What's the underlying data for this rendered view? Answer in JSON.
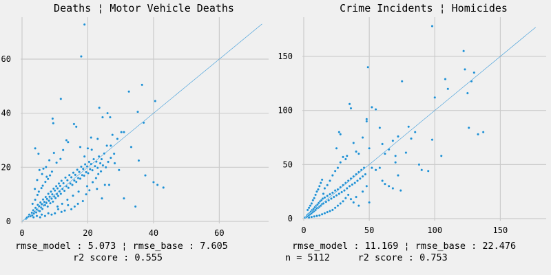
{
  "colors": {
    "background": "#f0f0f0",
    "grid": "#cbcbcb",
    "points": "#1f8fd2",
    "fit_line": "#3a9ad9"
  },
  "chart_data": [
    {
      "type": "scatter",
      "title": "Deaths ¦ Motor Vehicle Deaths",
      "xlim": [
        0,
        75
      ],
      "ylim": [
        0,
        75
      ],
      "xticks": [
        0,
        20,
        40,
        60
      ],
      "yticks": [
        0,
        20,
        40,
        60
      ],
      "grid": true,
      "fit_line": {
        "from": [
          0,
          0
        ],
        "to": [
          73,
          73
        ]
      },
      "captions": [
        "rmse_model : 5.073 ¦ rmse_base : 7.605",
        "r2 score : 0.555"
      ],
      "points": [
        [
          1.2,
          1.0
        ],
        [
          1.5,
          1.4
        ],
        [
          2.0,
          1.8
        ],
        [
          2.2,
          2.5
        ],
        [
          2.6,
          1.9
        ],
        [
          3.0,
          3.2
        ],
        [
          3.1,
          2.2
        ],
        [
          3.4,
          4.1
        ],
        [
          3.6,
          2.9
        ],
        [
          3.9,
          3.5
        ],
        [
          4.1,
          5.0
        ],
        [
          4.3,
          3.3
        ],
        [
          4.5,
          4.4
        ],
        [
          4.8,
          6.1
        ],
        [
          5.0,
          4.0
        ],
        [
          5.2,
          5.6
        ],
        [
          5.4,
          3.8
        ],
        [
          5.6,
          7.0
        ],
        [
          5.8,
          5.1
        ],
        [
          6.0,
          6.4
        ],
        [
          6.2,
          4.6
        ],
        [
          6.4,
          8.1
        ],
        [
          6.6,
          5.9
        ],
        [
          6.8,
          7.2
        ],
        [
          7.0,
          6.0
        ],
        [
          7.2,
          9.0
        ],
        [
          7.4,
          6.8
        ],
        [
          7.6,
          8.3
        ],
        [
          7.8,
          5.5
        ],
        [
          8.0,
          10.2
        ],
        [
          8.2,
          7.6
        ],
        [
          8.4,
          9.1
        ],
        [
          8.6,
          6.7
        ],
        [
          8.8,
          11.0
        ],
        [
          9.0,
          8.4
        ],
        [
          9.2,
          10.0
        ],
        [
          9.4,
          7.3
        ],
        [
          9.6,
          12.1
        ],
        [
          9.8,
          9.2
        ],
        [
          10.0,
          11.4
        ],
        [
          10.2,
          8.6
        ],
        [
          10.4,
          13.0
        ],
        [
          10.6,
          10.1
        ],
        [
          10.8,
          12.2
        ],
        [
          11.0,
          9.4
        ],
        [
          11.2,
          14.0
        ],
        [
          11.4,
          11.1
        ],
        [
          11.6,
          13.1
        ],
        [
          11.8,
          10.2
        ],
        [
          12.0,
          15.0
        ],
        [
          12.3,
          12.0
        ],
        [
          12.6,
          14.1
        ],
        [
          12.9,
          11.3
        ],
        [
          13.2,
          16.2
        ],
        [
          13.5,
          13.0
        ],
        [
          13.8,
          15.2
        ],
        [
          14.1,
          12.4
        ],
        [
          14.4,
          17.1
        ],
        [
          14.7,
          14.0
        ],
        [
          15.0,
          16.3
        ],
        [
          15.3,
          13.5
        ],
        [
          15.6,
          18.0
        ],
        [
          15.9,
          15.1
        ],
        [
          16.2,
          17.2
        ],
        [
          16.5,
          14.6
        ],
        [
          16.8,
          19.1
        ],
        [
          17.1,
          16.0
        ],
        [
          17.4,
          18.3
        ],
        [
          17.7,
          15.8
        ],
        [
          18.0,
          20.2
        ],
        [
          18.3,
          17.1
        ],
        [
          18.6,
          19.4
        ],
        [
          18.9,
          16.9
        ],
        [
          19.2,
          21.1
        ],
        [
          19.5,
          18.2
        ],
        [
          19.8,
          20.3
        ],
        [
          20.1,
          17.8
        ],
        [
          20.4,
          22.0
        ],
        [
          20.7,
          19.3
        ],
        [
          21.0,
          21.2
        ],
        [
          21.4,
          18.9
        ],
        [
          21.8,
          23.0
        ],
        [
          22.2,
          20.4
        ],
        [
          22.6,
          22.1
        ],
        [
          23.0,
          19.8
        ],
        [
          23.4,
          24.0
        ],
        [
          23.8,
          21.5
        ],
        [
          24.2,
          23.0
        ],
        [
          24.6,
          20.7
        ],
        [
          25.0,
          25.1
        ],
        [
          3.2,
          6.5
        ],
        [
          4.0,
          8.0
        ],
        [
          4.7,
          9.8
        ],
        [
          5.1,
          11.0
        ],
        [
          5.9,
          12.3
        ],
        [
          6.3,
          13.2
        ],
        [
          7.1,
          14.6
        ],
        [
          7.9,
          15.7
        ],
        [
          8.5,
          17.0
        ],
        [
          9.1,
          18.4
        ],
        [
          3.9,
          12.0
        ],
        [
          4.6,
          15.3
        ],
        [
          5.3,
          19.0
        ],
        [
          6.1,
          17.5
        ],
        [
          7.3,
          20.1
        ],
        [
          8.3,
          22.6
        ],
        [
          9.7,
          25.3
        ],
        [
          10.5,
          21.7
        ],
        [
          11.7,
          23.1
        ],
        [
          12.5,
          26.4
        ],
        [
          4.0,
          27.0
        ],
        [
          5.0,
          25.0
        ],
        [
          6.5,
          19.5
        ],
        [
          7.5,
          16.5
        ],
        [
          9.3,
          38.0
        ],
        [
          9.5,
          36.3
        ],
        [
          11.8,
          45.3
        ],
        [
          13.5,
          30.0
        ],
        [
          14.0,
          29.3
        ],
        [
          15.8,
          36.0
        ],
        [
          16.5,
          35.0
        ],
        [
          17.7,
          27.5
        ],
        [
          18.0,
          61.0
        ],
        [
          19.0,
          72.8
        ],
        [
          21.2,
          26.5
        ],
        [
          23.5,
          42.0
        ],
        [
          24.5,
          38.5
        ],
        [
          26.0,
          40.0
        ],
        [
          26.8,
          38.5
        ],
        [
          27.0,
          28.0
        ],
        [
          27.5,
          32.0
        ],
        [
          28.2,
          21.5
        ],
        [
          29.0,
          30.5
        ],
        [
          30.2,
          33.0
        ],
        [
          31.0,
          33.0
        ],
        [
          32.5,
          48.0
        ],
        [
          33.2,
          27.5
        ],
        [
          34.5,
          5.5
        ],
        [
          35.2,
          40.5
        ],
        [
          35.5,
          22.5
        ],
        [
          36.5,
          50.5
        ],
        [
          37.0,
          36.5
        ],
        [
          37.5,
          17.0
        ],
        [
          40.5,
          44.5
        ],
        [
          40.0,
          14.5
        ],
        [
          41.2,
          13.5
        ],
        [
          43.0,
          12.5
        ],
        [
          31.0,
          8.5
        ],
        [
          25.2,
          13.5
        ],
        [
          26.5,
          13.5
        ],
        [
          24.3,
          8.5
        ],
        [
          22.8,
          12.0
        ],
        [
          20.5,
          11.5
        ],
        [
          19.5,
          10.0
        ],
        [
          18.5,
          7.5
        ],
        [
          17.0,
          6.5
        ],
        [
          16.0,
          5.5
        ],
        [
          15.0,
          4.5
        ],
        [
          14.0,
          6.0
        ],
        [
          13.0,
          4.0
        ],
        [
          12.0,
          3.5
        ],
        [
          11.0,
          4.5
        ],
        [
          10.0,
          3.0
        ],
        [
          9.0,
          2.5
        ],
        [
          8.0,
          3.0
        ],
        [
          7.0,
          2.0
        ],
        [
          6.0,
          2.5
        ],
        [
          5.5,
          1.5
        ],
        [
          4.5,
          2.0
        ],
        [
          3.5,
          1.5
        ],
        [
          10.8,
          5.5
        ],
        [
          12.2,
          6.5
        ],
        [
          13.8,
          8.0
        ],
        [
          15.5,
          9.5
        ],
        [
          17.2,
          11.0
        ],
        [
          19.8,
          13.0
        ],
        [
          21.5,
          14.5
        ],
        [
          22.5,
          16.0
        ],
        [
          23.2,
          17.5
        ],
        [
          24.0,
          18.5
        ],
        [
          25.5,
          20.0
        ],
        [
          26.2,
          22.0
        ],
        [
          27.0,
          23.5
        ],
        [
          28.0,
          25.0
        ],
        [
          29.5,
          19.0
        ],
        [
          25.8,
          28.0
        ],
        [
          23.0,
          30.5
        ],
        [
          21.0,
          31.0
        ],
        [
          20.0,
          27.0
        ],
        [
          19.0,
          24.0
        ]
      ]
    },
    {
      "type": "scatter",
      "title": "Crime Incidents ¦ Homicides",
      "xlim": [
        0,
        185
      ],
      "ylim": [
        0,
        185
      ],
      "xticks": [
        0,
        50,
        100,
        150
      ],
      "yticks": [
        0,
        50,
        100,
        150
      ],
      "grid": true,
      "fit_line": {
        "from": [
          0,
          0
        ],
        "to": [
          177,
          177
        ]
      },
      "captions": [
        "rmse_model : 11.169 ¦ rmse_base : 22.476",
        "n = 5112     r2 score : 0.753"
      ],
      "points": [
        [
          1,
          1
        ],
        [
          2,
          1.5
        ],
        [
          2.5,
          3
        ],
        [
          3,
          2
        ],
        [
          3.5,
          4
        ],
        [
          4,
          3
        ],
        [
          4.5,
          5
        ],
        [
          5,
          4
        ],
        [
          5.5,
          6.5
        ],
        [
          6,
          5
        ],
        [
          6.5,
          8
        ],
        [
          7,
          6
        ],
        [
          7.5,
          9
        ],
        [
          8,
          7
        ],
        [
          8.5,
          10.5
        ],
        [
          9,
          8
        ],
        [
          9.5,
          12
        ],
        [
          10,
          9.5
        ],
        [
          10.5,
          13
        ],
        [
          11,
          10
        ],
        [
          11.5,
          14.5
        ],
        [
          12,
          11
        ],
        [
          12.5,
          16
        ],
        [
          13,
          12
        ],
        [
          13.5,
          17
        ],
        [
          14,
          13.5
        ],
        [
          14.5,
          18.5
        ],
        [
          15,
          14
        ],
        [
          16,
          19.5
        ],
        [
          17,
          15.5
        ],
        [
          18,
          21
        ],
        [
          19,
          17
        ],
        [
          20,
          22.5
        ],
        [
          21,
          18.5
        ],
        [
          22,
          24
        ],
        [
          23,
          20
        ],
        [
          24,
          26
        ],
        [
          25,
          21.5
        ],
        [
          26,
          27
        ],
        [
          27,
          23
        ],
        [
          28,
          29
        ],
        [
          29,
          24.5
        ],
        [
          30,
          31
        ],
        [
          31,
          26
        ],
        [
          32,
          33
        ],
        [
          33,
          28
        ],
        [
          34,
          35
        ],
        [
          35,
          30
        ],
        [
          36,
          37
        ],
        [
          37,
          31.5
        ],
        [
          38,
          39
        ],
        [
          39,
          33
        ],
        [
          40,
          41
        ],
        [
          41,
          35
        ],
        [
          42,
          43
        ],
        [
          43,
          37
        ],
        [
          44,
          45
        ],
        [
          45,
          39
        ],
        [
          46,
          47
        ],
        [
          47,
          41
        ],
        [
          3,
          8
        ],
        [
          4,
          10
        ],
        [
          5,
          12
        ],
        [
          6,
          14
        ],
        [
          7,
          17
        ],
        [
          8,
          19
        ],
        [
          9,
          22
        ],
        [
          10,
          25
        ],
        [
          11,
          27
        ],
        [
          12,
          30
        ],
        [
          13,
          33
        ],
        [
          14,
          36
        ],
        [
          15,
          23
        ],
        [
          16,
          28
        ],
        [
          18,
          31
        ],
        [
          20,
          35
        ],
        [
          22,
          40
        ],
        [
          24,
          44
        ],
        [
          26,
          47
        ],
        [
          28,
          52
        ],
        [
          25,
          65
        ],
        [
          27,
          80
        ],
        [
          28,
          78
        ],
        [
          30,
          57
        ],
        [
          32,
          55
        ],
        [
          33,
          58
        ],
        [
          35,
          106
        ],
        [
          36,
          102
        ],
        [
          38,
          70
        ],
        [
          40,
          62
        ],
        [
          42,
          60
        ],
        [
          45,
          75
        ],
        [
          48,
          90
        ],
        [
          48,
          92
        ],
        [
          49,
          140
        ],
        [
          50,
          65
        ],
        [
          52,
          103
        ],
        [
          55,
          101
        ],
        [
          58,
          84
        ],
        [
          60,
          69
        ],
        [
          62,
          60
        ],
        [
          65,
          64
        ],
        [
          68,
          72
        ],
        [
          70,
          58
        ],
        [
          72,
          76
        ],
        [
          75,
          127
        ],
        [
          78,
          61
        ],
        [
          80,
          85
        ],
        [
          82,
          74
        ],
        [
          85,
          80
        ],
        [
          88,
          50
        ],
        [
          90,
          45
        ],
        [
          95,
          44
        ],
        [
          98,
          178
        ],
        [
          98,
          73
        ],
        [
          100,
          112
        ],
        [
          105,
          58
        ],
        [
          108,
          129
        ],
        [
          110,
          120
        ],
        [
          122,
          155
        ],
        [
          123,
          138
        ],
        [
          125,
          116
        ],
        [
          126,
          84
        ],
        [
          128,
          127
        ],
        [
          130,
          135
        ],
        [
          133,
          78
        ],
        [
          137,
          80
        ],
        [
          52,
          47
        ],
        [
          55,
          45
        ],
        [
          58,
          47
        ],
        [
          60,
          35
        ],
        [
          62,
          32
        ],
        [
          65,
          30
        ],
        [
          68,
          28
        ],
        [
          70,
          52
        ],
        [
          72,
          40
        ],
        [
          74,
          26
        ],
        [
          50,
          15
        ],
        [
          48,
          30
        ],
        [
          45,
          25
        ],
        [
          42,
          12
        ],
        [
          40,
          20
        ],
        [
          38,
          15
        ],
        [
          36,
          18
        ],
        [
          34,
          22
        ],
        [
          32,
          19
        ],
        [
          30,
          16
        ],
        [
          28,
          14
        ],
        [
          26,
          12
        ],
        [
          24,
          10
        ],
        [
          22,
          8
        ],
        [
          20,
          7
        ],
        [
          18,
          6
        ],
        [
          16,
          5
        ],
        [
          14,
          4
        ],
        [
          12,
          3
        ],
        [
          10,
          2.5
        ],
        [
          8,
          2
        ],
        [
          6,
          1.5
        ],
        [
          4,
          1
        ]
      ]
    }
  ]
}
